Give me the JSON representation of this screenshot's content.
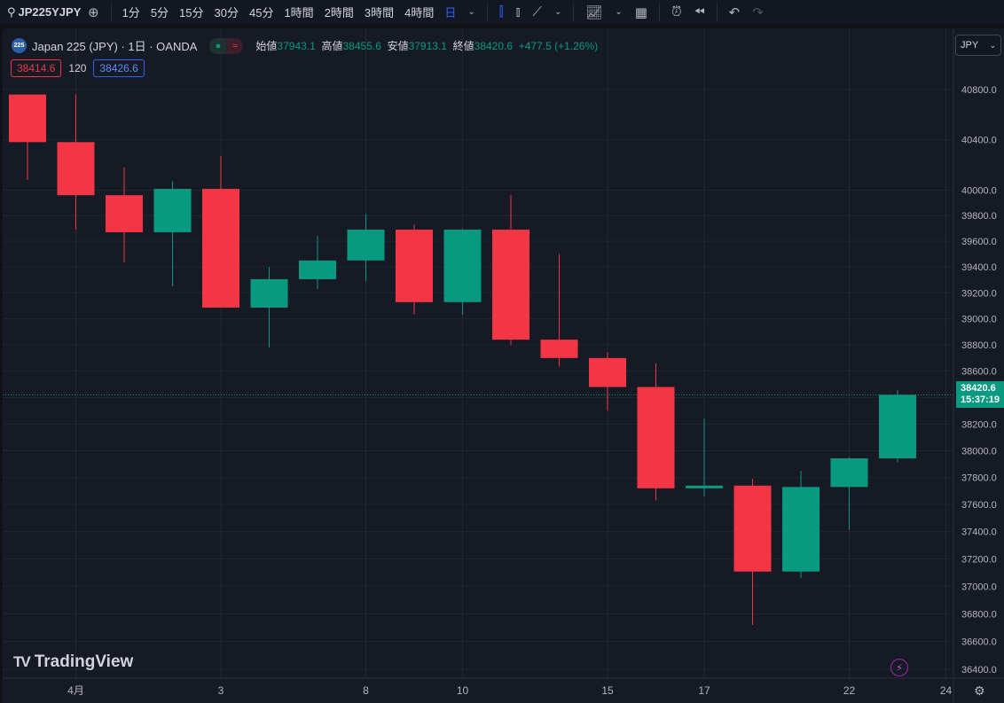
{
  "toolbar": {
    "symbol": "JP225YJPY",
    "intervals": [
      "1分",
      "5分",
      "15分",
      "30分",
      "45分",
      "1時間",
      "2時間",
      "3時間",
      "4時間"
    ],
    "active_interval": "日",
    "icons": [
      "search-icon",
      "add-symbol-icon",
      "chevron-down-icon",
      "candles-icon",
      "bars-icon",
      "line-icon",
      "chevron-down-icon",
      "indicators-icon",
      "chevron-down-icon",
      "layouts-icon",
      "alert-icon",
      "replay-icon",
      "undo-icon",
      "redo-icon"
    ]
  },
  "legend": {
    "title": "Japan 225 (JPY) · 1日 · OANDA",
    "logo_text": "225",
    "open_label": "始値",
    "open": "37943.1",
    "high_label": "高値",
    "high": "38455.6",
    "low_label": "安値",
    "low": "37913.1",
    "close_label": "終値",
    "close": "38420.6",
    "change": "+477.5 (+1.26%)",
    "bid": "38414.6",
    "spread": "120",
    "ask": "38426.6"
  },
  "currency": "JPY",
  "last_price": {
    "price": "38420.6",
    "countdown": "15:37:19"
  },
  "brand": "TradingView",
  "colors": {
    "up": "#089981",
    "down": "#f23645",
    "background": "#161a25",
    "grid": "#232632",
    "bid": "#f23645",
    "ask": "#2962ff"
  },
  "chart_data": {
    "type": "candlestick",
    "y_scale": "log",
    "ylim": [
      36320,
      40900
    ],
    "grid": true,
    "y_ticks": [
      36400,
      36600,
      36800,
      37000,
      37200,
      37400,
      37600,
      37800,
      38000,
      38200,
      38400,
      38600,
      38800,
      39000,
      39200,
      39400,
      39600,
      39800,
      40000,
      40400,
      40800
    ],
    "x_tick_labels": [
      {
        "index": 1,
        "label": "4月"
      },
      {
        "index": 4,
        "label": "3"
      },
      {
        "index": 7,
        "label": "8"
      },
      {
        "index": 9,
        "label": "10"
      },
      {
        "index": 12,
        "label": "15"
      },
      {
        "index": 14,
        "label": "17"
      },
      {
        "index": 17,
        "label": "22"
      },
      {
        "index": 19,
        "label": "24"
      }
    ],
    "candles": [
      {
        "date": "03-29",
        "o": 40760,
        "h": 40760,
        "l": 40080,
        "c": 40380
      },
      {
        "date": "04-01",
        "o": 40380,
        "h": 40760,
        "l": 39690,
        "c": 39960
      },
      {
        "date": "04-02",
        "o": 39960,
        "h": 40180,
        "l": 39435,
        "c": 39670
      },
      {
        "date": "04-03",
        "o": 39670,
        "h": 40070,
        "l": 39250,
        "c": 40010
      },
      {
        "date": "04-04",
        "o": 40010,
        "h": 40270,
        "l": 39086,
        "c": 39086
      },
      {
        "date": "04-05",
        "o": 39086,
        "h": 39400,
        "l": 38780,
        "c": 39305
      },
      {
        "date": "04-08",
        "o": 39305,
        "h": 39640,
        "l": 39230,
        "c": 39450
      },
      {
        "date": "04-09",
        "o": 39450,
        "h": 39810,
        "l": 39290,
        "c": 39690
      },
      {
        "date": "04-10",
        "o": 39690,
        "h": 39730,
        "l": 39035,
        "c": 39128
      },
      {
        "date": "04-11",
        "o": 39128,
        "h": 39700,
        "l": 39030,
        "c": 39690
      },
      {
        "date": "04-12",
        "o": 39690,
        "h": 39960,
        "l": 38800,
        "c": 38840
      },
      {
        "date": "04-15",
        "o": 38840,
        "h": 39500,
        "l": 38635,
        "c": 38700
      },
      {
        "date": "04-16",
        "o": 38700,
        "h": 38745,
        "l": 38300,
        "c": 38480
      },
      {
        "date": "04-17",
        "o": 38480,
        "h": 38660,
        "l": 37630,
        "c": 37720
      },
      {
        "date": "04-18",
        "o": 37720,
        "h": 38240,
        "l": 37660,
        "c": 37740
      },
      {
        "date": "04-19",
        "o": 37740,
        "h": 37790,
        "l": 36720,
        "c": 37107
      },
      {
        "date": "04-22",
        "o": 37107,
        "h": 37850,
        "l": 37060,
        "c": 37730
      },
      {
        "date": "04-23",
        "o": 37730,
        "h": 37950,
        "l": 37415,
        "c": 37943
      },
      {
        "date": "04-24",
        "o": 37943.1,
        "h": 38455.6,
        "l": 37913.1,
        "c": 38420.6
      }
    ]
  }
}
